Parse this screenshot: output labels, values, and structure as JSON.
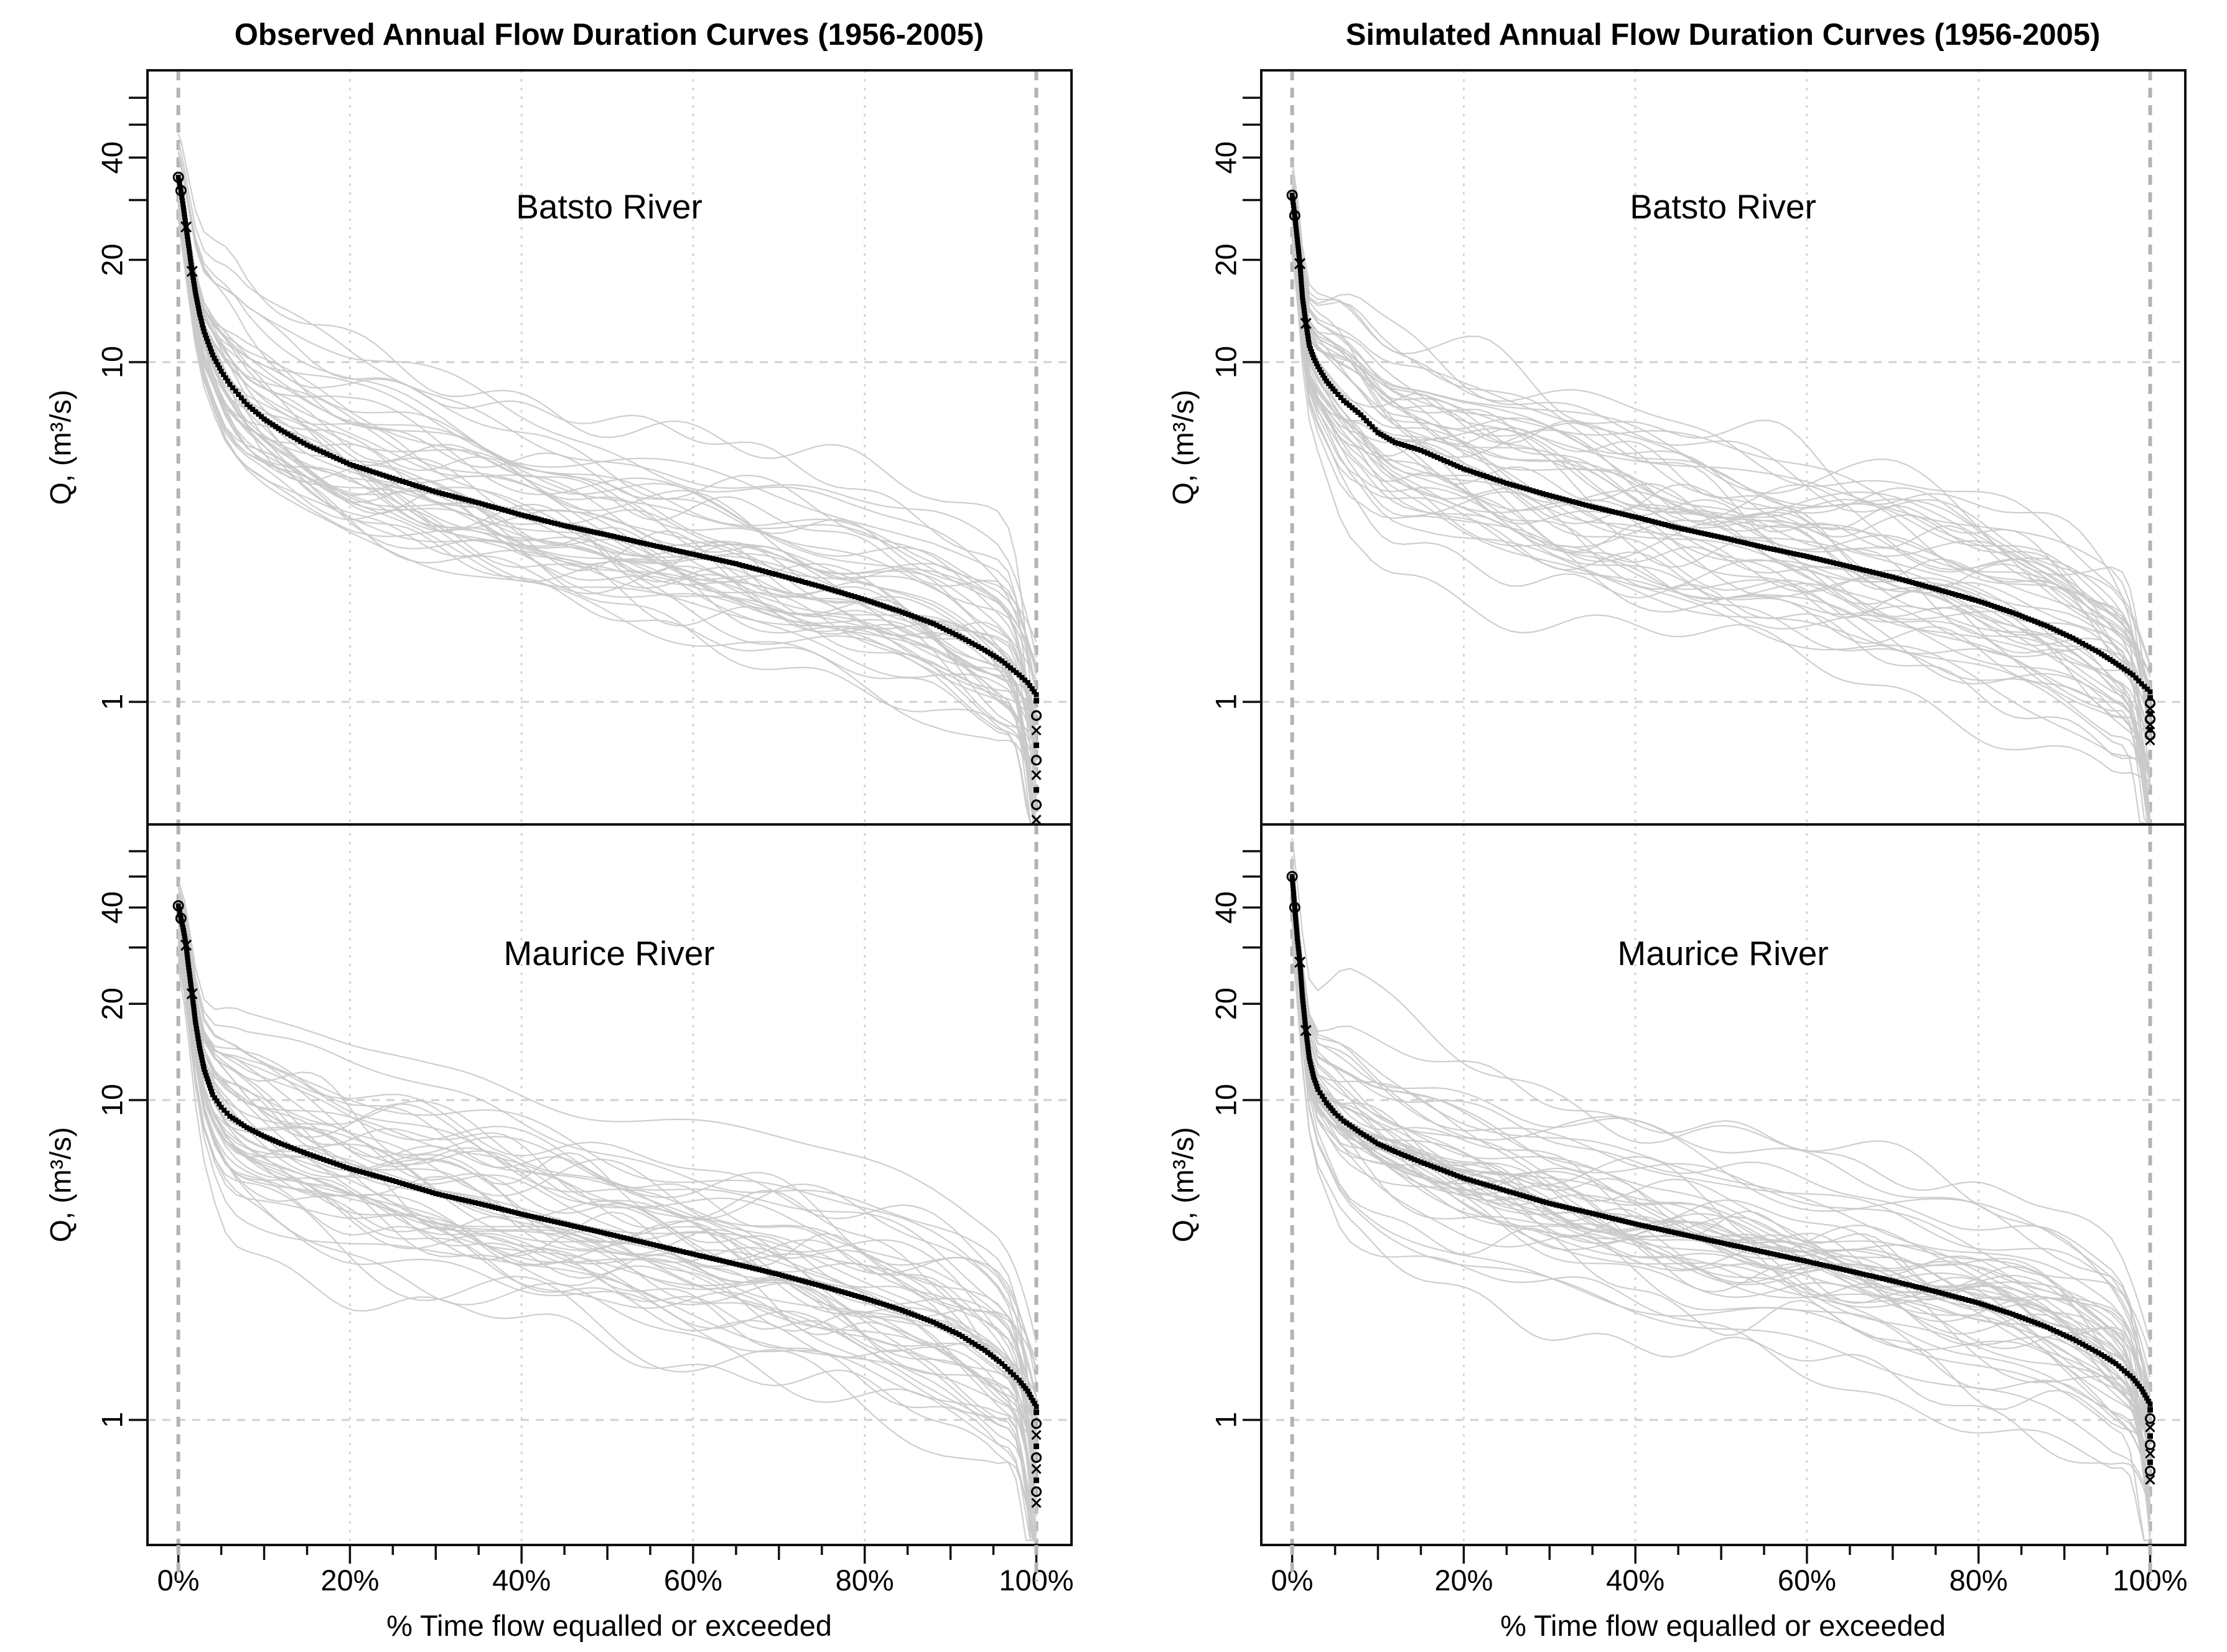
{
  "figure": {
    "background": "#ffffff",
    "columns": [
      {
        "id": "observed",
        "title": "Observed Annual Flow Duration Curves (1956-2005)",
        "xlabel": "% Time flow equalled or exceeded"
      },
      {
        "id": "simulated",
        "title": "Simulated Annual Flow Duration Curves (1956-2005)",
        "xlabel": "% Time flow equalled or exceeded"
      }
    ],
    "colors": {
      "median": "#000000",
      "annual_lines": "#c9c9c9",
      "grid_dotted_vertical": "#d4d4d4",
      "grid_dashed_bold_vertical": "#b3b3b3",
      "grid_dashed_horizontal": "#cfcfcf",
      "border": "#111111",
      "text": "#000000"
    }
  },
  "chart_data": [
    {
      "type": "line",
      "panel": "top-left",
      "dataset": "Observed",
      "river": "Batsto River",
      "title": "Observed Annual Flow Duration Curves (1956-2005)",
      "xlabel": "% Time flow equalled or exceeded",
      "ylabel": "Q,  (m³/s)",
      "ylog": true,
      "ylim": [
        0.42,
        72
      ],
      "xlim": [
        0,
        100
      ],
      "x_ticks_minor_step": 5,
      "x_ticks_labeled": [
        0,
        20,
        40,
        60,
        80,
        100
      ],
      "x_tick_labels": [
        "0%",
        "20%",
        "40%",
        "60%",
        "80%",
        "100%"
      ],
      "y_ticks": [
        1,
        10,
        20,
        30,
        40,
        50,
        60
      ],
      "y_ticks_labeled": [
        1,
        10,
        20,
        40
      ],
      "gridlines": {
        "vertical_dashed": [
          0,
          100
        ],
        "vertical_dotted": [
          20,
          40,
          60,
          80
        ],
        "horizontal_dashed": [
          1,
          10
        ]
      },
      "n_years": 50,
      "median_fdc": {
        "percent_exceedance": [
          0,
          0.3,
          0.6,
          0.9,
          1.2,
          1.6,
          2,
          2.5,
          3,
          4,
          5,
          6,
          8,
          10,
          12,
          15,
          20,
          25,
          30,
          35,
          40,
          45,
          50,
          55,
          60,
          65,
          70,
          75,
          80,
          84,
          88,
          91,
          94,
          96,
          98,
          99,
          100
        ],
        "q_m3s": [
          35,
          32,
          28.5,
          25,
          22,
          18.5,
          16,
          13.8,
          12.3,
          10.5,
          9.4,
          8.6,
          7.5,
          6.8,
          6.3,
          5.7,
          5.0,
          4.55,
          4.15,
          3.85,
          3.55,
          3.3,
          3.1,
          2.9,
          2.72,
          2.55,
          2.36,
          2.18,
          2.0,
          1.85,
          1.7,
          1.56,
          1.42,
          1.32,
          1.2,
          1.14,
          1.05
        ]
      },
      "min_at_100pct": 0.45
    },
    {
      "type": "line",
      "panel": "top-right",
      "dataset": "Simulated",
      "river": "Batsto River",
      "title": "Simulated Annual Flow Duration Curves (1956-2005)",
      "xlabel": "% Time flow equalled or exceeded",
      "ylabel": "Q,  (m³/s)",
      "ylog": true,
      "ylim": [
        0.42,
        72
      ],
      "xlim": [
        0,
        100
      ],
      "x_ticks_minor_step": 5,
      "x_ticks_labeled": [
        0,
        20,
        40,
        60,
        80,
        100
      ],
      "x_tick_labels": [
        "0%",
        "20%",
        "40%",
        "60%",
        "80%",
        "100%"
      ],
      "y_ticks": [
        1,
        10,
        20,
        30,
        40,
        50,
        60
      ],
      "y_ticks_labeled": [
        1,
        10,
        20,
        40
      ],
      "gridlines": {
        "vertical_dashed": [
          0,
          100
        ],
        "vertical_dotted": [
          20,
          40,
          60,
          80
        ],
        "horizontal_dashed": [
          1,
          10
        ]
      },
      "n_years": 50,
      "median_fdc": {
        "percent_exceedance": [
          0,
          0.3,
          0.6,
          0.9,
          1.2,
          1.6,
          2,
          2.5,
          3,
          4,
          5,
          6,
          8,
          10,
          12,
          15,
          20,
          25,
          30,
          35,
          40,
          45,
          50,
          55,
          60,
          65,
          70,
          75,
          80,
          84,
          88,
          91,
          94,
          96,
          98,
          99,
          100
        ],
        "q_m3s": [
          31,
          27,
          23,
          19.5,
          15.5,
          13,
          11.2,
          10.3,
          9.7,
          8.8,
          8.2,
          7.7,
          7.0,
          6.2,
          5.8,
          5.5,
          4.85,
          4.4,
          4.05,
          3.75,
          3.5,
          3.25,
          3.05,
          2.85,
          2.68,
          2.5,
          2.33,
          2.15,
          1.98,
          1.83,
          1.67,
          1.54,
          1.4,
          1.3,
          1.2,
          1.13,
          1.07
        ]
      },
      "min_at_100pct": 0.77
    },
    {
      "type": "line",
      "panel": "bottom-left",
      "dataset": "Observed",
      "river": "Maurice River",
      "title": "Observed Annual Flow Duration Curves (1956-2005)",
      "xlabel": "% Time flow equalled or exceeded",
      "ylabel": "Q,  (m³/s)",
      "ylog": true,
      "ylim": [
        0.4,
        72
      ],
      "xlim": [
        0,
        100
      ],
      "x_ticks_minor_step": 5,
      "x_ticks_labeled": [
        0,
        20,
        40,
        60,
        80,
        100
      ],
      "x_tick_labels": [
        "0%",
        "20%",
        "40%",
        "60%",
        "80%",
        "100%"
      ],
      "y_ticks": [
        1,
        10,
        20,
        30,
        40,
        50,
        60
      ],
      "y_ticks_labeled": [
        1,
        10,
        20,
        40
      ],
      "gridlines": {
        "vertical_dashed": [
          0,
          100
        ],
        "vertical_dotted": [
          20,
          40,
          60,
          80
        ],
        "horizontal_dashed": [
          1,
          10
        ]
      },
      "n_years": 50,
      "median_fdc": {
        "percent_exceedance": [
          0,
          0.3,
          0.6,
          0.9,
          1.2,
          1.6,
          2,
          2.5,
          3,
          4,
          5,
          6,
          8,
          10,
          12,
          15,
          20,
          25,
          30,
          35,
          40,
          45,
          50,
          55,
          60,
          65,
          70,
          75,
          80,
          84,
          88,
          91,
          94,
          96,
          98,
          99,
          100
        ],
        "q_m3s": [
          40.5,
          37,
          34,
          30.5,
          26,
          21.5,
          17.5,
          14.5,
          12.5,
          10.4,
          9.5,
          8.9,
          8.2,
          7.7,
          7.3,
          6.8,
          6.1,
          5.6,
          5.1,
          4.75,
          4.4,
          4.1,
          3.82,
          3.55,
          3.3,
          3.07,
          2.85,
          2.62,
          2.4,
          2.22,
          2.02,
          1.85,
          1.65,
          1.5,
          1.33,
          1.23,
          1.1
        ]
      },
      "min_at_100pct": 0.55
    },
    {
      "type": "line",
      "panel": "bottom-right",
      "dataset": "Simulated",
      "river": "Maurice River",
      "title": "Simulated Annual Flow Duration Curves (1956-2005)",
      "xlabel": "% Time flow equalled or exceeded",
      "ylabel": "Q,  (m³/s)",
      "ylog": true,
      "ylim": [
        0.4,
        72
      ],
      "xlim": [
        0,
        100
      ],
      "x_ticks_minor_step": 5,
      "x_ticks_labeled": [
        0,
        20,
        40,
        60,
        80,
        100
      ],
      "x_tick_labels": [
        "0%",
        "20%",
        "40%",
        "60%",
        "80%",
        "100%"
      ],
      "y_ticks": [
        1,
        10,
        20,
        30,
        40,
        50,
        60
      ],
      "y_ticks_labeled": [
        1,
        10,
        20,
        40
      ],
      "gridlines": {
        "vertical_dashed": [
          0,
          100
        ],
        "vertical_dotted": [
          20,
          40,
          60,
          80
        ],
        "horizontal_dashed": [
          1,
          10
        ]
      },
      "n_years": 50,
      "median_fdc": {
        "percent_exceedance": [
          0,
          0.3,
          0.6,
          0.9,
          1.2,
          1.6,
          2,
          2.5,
          3,
          4,
          5,
          6,
          8,
          10,
          12,
          15,
          20,
          25,
          30,
          35,
          40,
          45,
          50,
          55,
          60,
          65,
          70,
          75,
          80,
          84,
          88,
          91,
          94,
          96,
          98,
          99,
          100
        ],
        "q_m3s": [
          50,
          40,
          32,
          27,
          21,
          16.5,
          13.5,
          11.8,
          10.8,
          9.8,
          9.1,
          8.6,
          7.9,
          7.3,
          6.9,
          6.4,
          5.7,
          5.2,
          4.75,
          4.42,
          4.1,
          3.83,
          3.58,
          3.35,
          3.13,
          2.92,
          2.72,
          2.52,
          2.32,
          2.14,
          1.95,
          1.79,
          1.62,
          1.5,
          1.35,
          1.25,
          1.12
        ]
      },
      "min_at_100pct": 0.65
    }
  ]
}
